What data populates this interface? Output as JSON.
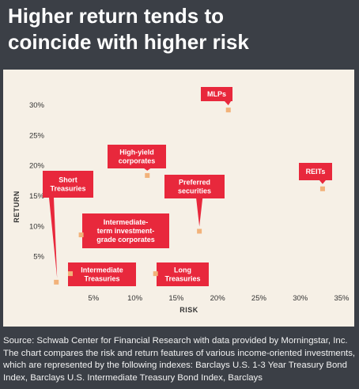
{
  "headline": {
    "line1": "Higher return tends to",
    "line2": "coincide with higher risk"
  },
  "colors": {
    "background": "#3b3f46",
    "panel": "#f6f0e6",
    "callout": "#e8283c",
    "point": "#f2b27a"
  },
  "chart_data": {
    "type": "scatter",
    "xlabel": "RISK",
    "ylabel": "RETURN",
    "xlim": [
      0,
      35
    ],
    "ylim": [
      0,
      33
    ],
    "x_ticks": [
      {
        "value": 5,
        "label": "5%"
      },
      {
        "value": 10,
        "label": "10%"
      },
      {
        "value": 15,
        "label": "15%"
      },
      {
        "value": 20,
        "label": "20%"
      },
      {
        "value": 25,
        "label": "25%"
      },
      {
        "value": 30,
        "label": "30%"
      },
      {
        "value": 35,
        "label": "35%"
      }
    ],
    "y_ticks": [
      {
        "value": 5,
        "label": "5%"
      },
      {
        "value": 10,
        "label": "10%"
      },
      {
        "value": 15,
        "label": "15%"
      },
      {
        "value": 20,
        "label": "20%"
      },
      {
        "value": 25,
        "label": "25%"
      },
      {
        "value": 30,
        "label": "30%"
      }
    ],
    "grid": false,
    "points": [
      {
        "label": "Short Treasuries",
        "lines": [
          "Short",
          "Treasuries"
        ],
        "x": 0.5,
        "y": 0.8
      },
      {
        "label": "Intermediate Treasuries",
        "lines": [
          "Intermediate",
          "Treasuries"
        ],
        "x": 2.2,
        "y": 2.2
      },
      {
        "label": "Intermediate-term investment-grade corporates",
        "lines": [
          "Intermediate-",
          "term investment-",
          "grade corporates"
        ],
        "x": 3.5,
        "y": 8.6
      },
      {
        "label": "Long Treasuries",
        "lines": [
          "Long",
          "Treasuries"
        ],
        "x": 12.5,
        "y": 2.2
      },
      {
        "label": "High-yield corporates",
        "lines": [
          "High-yield",
          "corporates"
        ],
        "x": 11.5,
        "y": 18.4
      },
      {
        "label": "Preferred securities",
        "lines": [
          "Preferred",
          "securities"
        ],
        "x": 17.8,
        "y": 9.2
      },
      {
        "label": "MLPs",
        "lines": [
          "MLPs"
        ],
        "x": 21.3,
        "y": 29.2
      },
      {
        "label": "REITs",
        "lines": [
          "REITs"
        ],
        "x": 32.7,
        "y": 16.2
      }
    ]
  },
  "source": {
    "text": "Source: Schwab Center for Financial Research with data provided by Morningstar, Inc. The chart compares the risk and return features of various income-oriented investments, which are represented by the following indexes: Barclays U.S. 1-3 Year Treasury Bond Index, Barclays U.S. Intermediate Treasury Bond Index, Barclays"
  }
}
